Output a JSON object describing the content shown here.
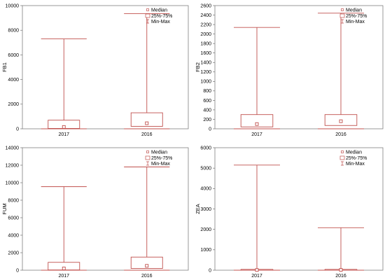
{
  "colors": {
    "box": "#c0504d",
    "frame": "#808080",
    "gridline": "#d0d0d0"
  },
  "legend": {
    "median": "Median",
    "iqr": "25%-75%",
    "range": "Min-Max"
  },
  "chart_data": [
    {
      "type": "boxplot",
      "ylabel": "FB1",
      "ylim": [
        0,
        10000
      ],
      "yticks": [
        0,
        2000,
        4000,
        6000,
        8000,
        10000
      ],
      "categories": [
        "2017",
        "2016"
      ],
      "boxes": [
        {
          "category": "2017",
          "min": 0,
          "q1": 30,
          "median": 150,
          "q3": 700,
          "max": 7300
        },
        {
          "category": "2016",
          "min": 0,
          "q1": 200,
          "median": 450,
          "q3": 1300,
          "max": 9350
        }
      ],
      "legend_position": "top-right"
    },
    {
      "type": "boxplot",
      "ylabel": "FB2",
      "ylim": [
        0,
        2600
      ],
      "yticks": [
        0,
        200,
        400,
        600,
        800,
        1000,
        1200,
        1400,
        1600,
        1800,
        2000,
        2200,
        2400,
        2600
      ],
      "categories": [
        "2017",
        "2016"
      ],
      "boxes": [
        {
          "category": "2017",
          "min": 0,
          "q1": 40,
          "median": 100,
          "q3": 300,
          "max": 2140
        },
        {
          "category": "2016",
          "min": 0,
          "q1": 70,
          "median": 160,
          "q3": 300,
          "max": 2440
        }
      ],
      "legend_position": "top-right"
    },
    {
      "type": "boxplot",
      "ylabel": "FUM",
      "ylim": [
        0,
        14000
      ],
      "yticks": [
        0,
        2000,
        4000,
        6000,
        8000,
        10000,
        12000,
        14000
      ],
      "categories": [
        "2017",
        "2016"
      ],
      "boxes": [
        {
          "category": "2017",
          "min": 0,
          "q1": 30,
          "median": 200,
          "q3": 900,
          "max": 9550
        },
        {
          "category": "2016",
          "min": 0,
          "q1": 200,
          "median": 500,
          "q3": 1500,
          "max": 11800
        }
      ],
      "legend_position": "top-right"
    },
    {
      "type": "boxplot",
      "ylabel": "ZEA",
      "ylim": [
        0,
        6000
      ],
      "yticks": [
        0,
        1000,
        2000,
        3000,
        4000,
        5000,
        6000
      ],
      "categories": [
        "2017",
        "2016"
      ],
      "boxes": [
        {
          "category": "2017",
          "min": 0,
          "q1": 0,
          "median": 10,
          "q3": 40,
          "max": 5150
        },
        {
          "category": "2016",
          "min": 0,
          "q1": 0,
          "median": 15,
          "q3": 40,
          "max": 2080
        }
      ],
      "legend_position": "top-right"
    }
  ]
}
